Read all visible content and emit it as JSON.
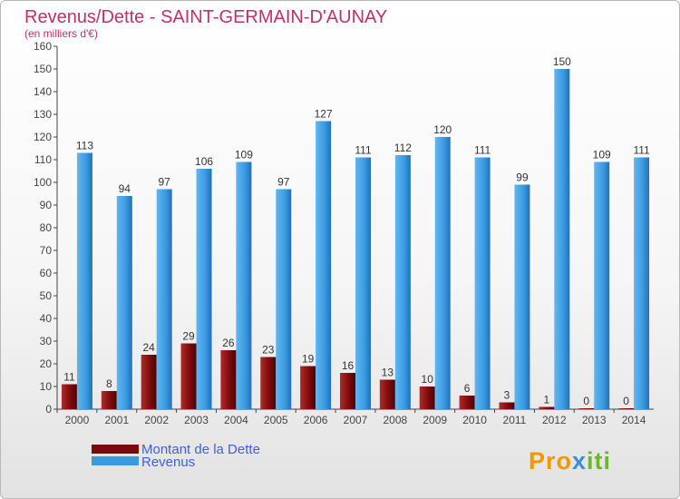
{
  "chart_data": {
    "type": "bar",
    "title": "Revenus/Dette - SAINT-GERMAIN-D'AUNAY",
    "subtitle": "(en milliers d'€)",
    "categories": [
      "2000",
      "2001",
      "2002",
      "2003",
      "2004",
      "2005",
      "2006",
      "2007",
      "2008",
      "2009",
      "2010",
      "2011",
      "2012",
      "2013",
      "2014"
    ],
    "series": [
      {
        "name": "Montant de la Dette",
        "color": "#7a0a0a",
        "values": [
          11,
          8,
          24,
          29,
          26,
          23,
          19,
          16,
          13,
          10,
          6,
          3,
          1,
          0,
          0
        ]
      },
      {
        "name": "Revenus",
        "color": "#3a9ae0",
        "values": [
          113,
          94,
          97,
          106,
          109,
          97,
          127,
          111,
          112,
          120,
          111,
          99,
          150,
          109,
          111
        ]
      }
    ],
    "ylim": [
      0,
      160
    ],
    "ytick_step": 10,
    "grid": false,
    "legend": "bottom-left"
  },
  "logo": {
    "text": "Proxiti",
    "parts": [
      "Pro",
      "x",
      "iti"
    ]
  }
}
